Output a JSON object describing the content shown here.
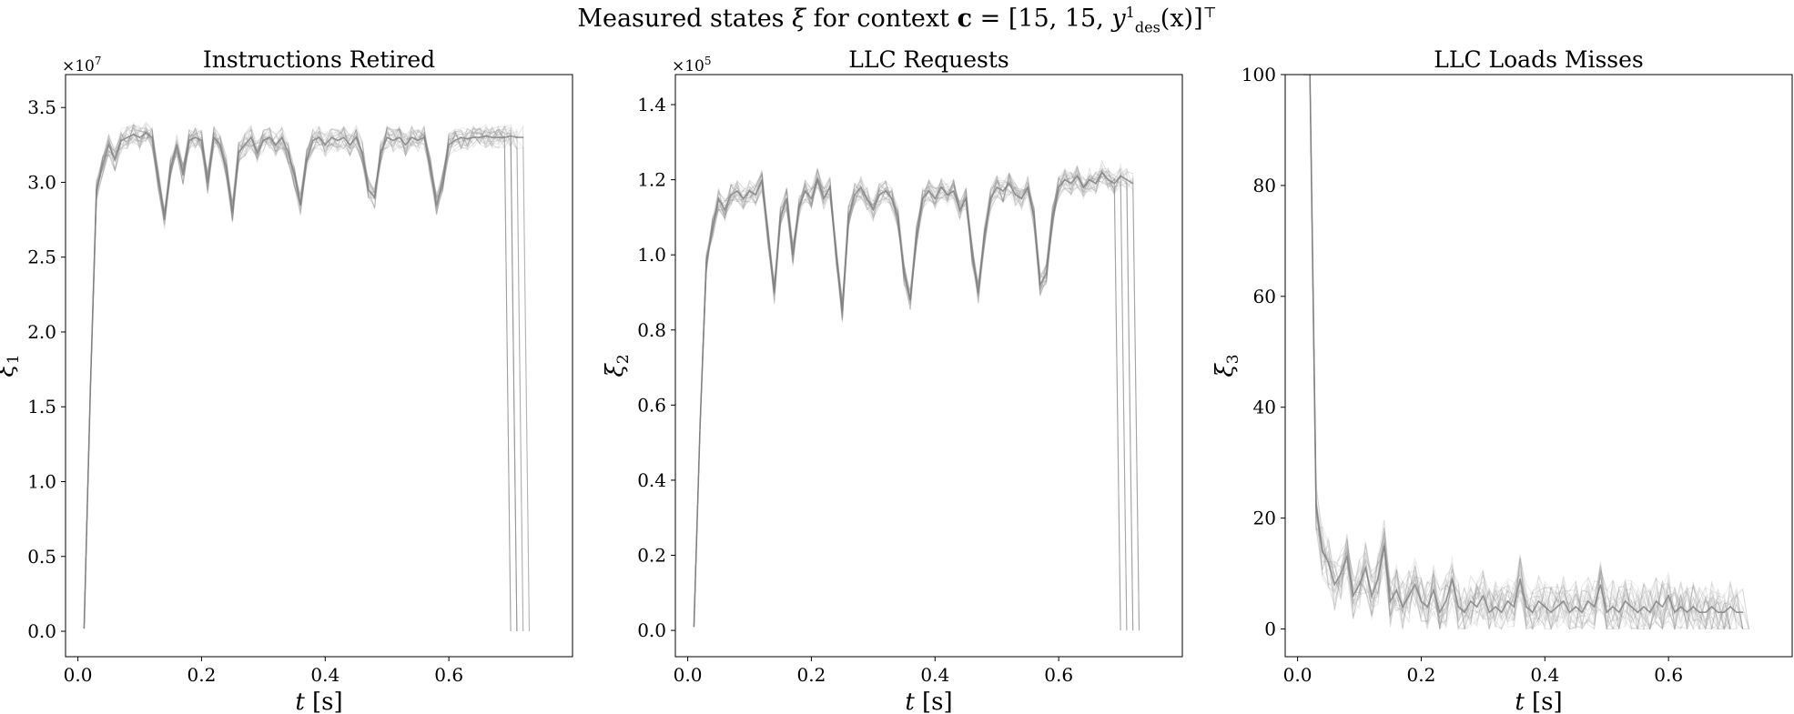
{
  "figure": {
    "suptitle_prefix": "Measured states ",
    "suptitle_xi": "ξ",
    "suptitle_mid": " for context ",
    "suptitle_c": "c",
    "suptitle_eq": " = [15, 15, ",
    "suptitle_y": "y",
    "suptitle_sup": "1",
    "suptitle_sub": "des",
    "suptitle_arg": "(x)",
    "suptitle_close": "]",
    "suptitle_T": "⊤",
    "line_color": "#808080"
  },
  "chart_data": [
    {
      "type": "line",
      "title": "Instructions Retired",
      "xlabel": "t [s]",
      "ylabel": "ξ1",
      "ylabel_base": "ξ",
      "ylabel_sub": "1",
      "offset_text": "×10",
      "offset_exp": "7",
      "xlim": [
        -0.02,
        0.8
      ],
      "ylim": [
        -0.17,
        3.72
      ],
      "xticks": [
        0.0,
        0.2,
        0.4,
        0.6
      ],
      "xtick_labels": [
        "0.0",
        "0.2",
        "0.4",
        "0.6"
      ],
      "yticks": [
        0.0,
        0.5,
        1.0,
        1.5,
        2.0,
        2.5,
        3.0,
        3.5
      ],
      "ytick_labels": [
        "0.0",
        "0.5",
        "1.0",
        "1.5",
        "2.0",
        "2.5",
        "3.0",
        "3.5"
      ],
      "grid": false,
      "series": [
        {
          "x": [
            0.01,
            0.02,
            0.03,
            0.04,
            0.05,
            0.06,
            0.07,
            0.08,
            0.09,
            0.1,
            0.11,
            0.12,
            0.13,
            0.14,
            0.15,
            0.16,
            0.17,
            0.18,
            0.19,
            0.2,
            0.21,
            0.22,
            0.23,
            0.24,
            0.25,
            0.26,
            0.27,
            0.28,
            0.29,
            0.3,
            0.31,
            0.32,
            0.33,
            0.34,
            0.35,
            0.36,
            0.37,
            0.38,
            0.39,
            0.4,
            0.41,
            0.42,
            0.43,
            0.44,
            0.45,
            0.46,
            0.47,
            0.48,
            0.49,
            0.5,
            0.51,
            0.52,
            0.53,
            0.54,
            0.55,
            0.56,
            0.57,
            0.58,
            0.59,
            0.6,
            0.61,
            0.62,
            0.63,
            0.64,
            0.65,
            0.66,
            0.67,
            0.68,
            0.69,
            0.7,
            0.71,
            0.72
          ],
          "y": [
            0.02,
            1.6,
            2.95,
            3.12,
            3.25,
            3.15,
            3.28,
            3.3,
            3.32,
            3.3,
            3.33,
            3.3,
            3.02,
            2.75,
            3.1,
            3.25,
            3.05,
            3.28,
            3.3,
            3.28,
            3.0,
            3.3,
            3.25,
            3.1,
            2.8,
            3.2,
            3.25,
            3.3,
            3.2,
            3.28,
            3.3,
            3.25,
            3.3,
            3.2,
            3.05,
            2.85,
            3.15,
            3.28,
            3.3,
            3.25,
            3.3,
            3.28,
            3.3,
            3.25,
            3.3,
            3.2,
            2.95,
            2.9,
            3.2,
            3.3,
            3.28,
            3.3,
            3.25,
            3.3,
            3.28,
            3.3,
            3.1,
            2.85,
            3.0,
            3.25,
            3.28,
            3.3,
            3.29,
            3.3,
            3.3,
            3.31,
            3.3,
            3.3,
            3.3,
            3.31,
            3.3,
            3.3
          ]
        }
      ]
    },
    {
      "type": "line",
      "title": "LLC Requests",
      "xlabel": "t [s]",
      "ylabel": "ξ2",
      "ylabel_base": "ξ",
      "ylabel_sub": "2",
      "offset_text": "×10",
      "offset_exp": "5",
      "xlim": [
        -0.02,
        0.8
      ],
      "ylim": [
        -0.07,
        1.48
      ],
      "xticks": [
        0.0,
        0.2,
        0.4,
        0.6
      ],
      "xtick_labels": [
        "0.0",
        "0.2",
        "0.4",
        "0.6"
      ],
      "yticks": [
        0.0,
        0.2,
        0.4,
        0.6,
        0.8,
        1.0,
        1.2,
        1.4
      ],
      "ytick_labels": [
        "0.0",
        "0.2",
        "0.4",
        "0.6",
        "0.8",
        "1.0",
        "1.2",
        "1.4"
      ],
      "grid": false,
      "series": [
        {
          "x": [
            0.01,
            0.02,
            0.03,
            0.04,
            0.05,
            0.06,
            0.07,
            0.08,
            0.09,
            0.1,
            0.11,
            0.12,
            0.13,
            0.14,
            0.15,
            0.16,
            0.17,
            0.18,
            0.19,
            0.2,
            0.21,
            0.22,
            0.23,
            0.24,
            0.25,
            0.26,
            0.27,
            0.28,
            0.29,
            0.3,
            0.31,
            0.32,
            0.33,
            0.34,
            0.35,
            0.36,
            0.37,
            0.38,
            0.39,
            0.4,
            0.41,
            0.42,
            0.43,
            0.44,
            0.45,
            0.46,
            0.47,
            0.48,
            0.49,
            0.5,
            0.51,
            0.52,
            0.53,
            0.54,
            0.55,
            0.56,
            0.57,
            0.58,
            0.59,
            0.6,
            0.61,
            0.62,
            0.63,
            0.64,
            0.65,
            0.66,
            0.67,
            0.68,
            0.69,
            0.7,
            0.71,
            0.72
          ],
          "y": [
            0.01,
            0.55,
            0.98,
            1.07,
            1.15,
            1.12,
            1.16,
            1.17,
            1.15,
            1.17,
            1.16,
            1.2,
            1.05,
            0.9,
            1.1,
            1.15,
            1.0,
            1.13,
            1.17,
            1.15,
            1.2,
            1.15,
            1.18,
            1.0,
            0.85,
            1.1,
            1.16,
            1.18,
            1.15,
            1.12,
            1.16,
            1.17,
            1.15,
            1.1,
            0.95,
            0.88,
            1.05,
            1.15,
            1.17,
            1.15,
            1.18,
            1.16,
            1.17,
            1.12,
            1.15,
            1.0,
            0.9,
            1.05,
            1.15,
            1.18,
            1.17,
            1.19,
            1.16,
            1.15,
            1.18,
            1.1,
            0.92,
            0.95,
            1.1,
            1.18,
            1.2,
            1.19,
            1.21,
            1.18,
            1.2,
            1.19,
            1.22,
            1.2,
            1.19,
            1.21,
            1.2,
            1.19
          ]
        }
      ]
    },
    {
      "type": "line",
      "title": "LLC Loads Misses",
      "xlabel": "t [s]",
      "ylabel": "ξ3",
      "ylabel_base": "ξ",
      "ylabel_sub": "3",
      "offset_text": "",
      "offset_exp": "",
      "xlim": [
        -0.02,
        0.8
      ],
      "ylim": [
        -5,
        100
      ],
      "xticks": [
        0.0,
        0.2,
        0.4,
        0.6
      ],
      "xtick_labels": [
        "0.0",
        "0.2",
        "0.4",
        "0.6"
      ],
      "yticks": [
        0,
        20,
        40,
        60,
        80,
        100
      ],
      "ytick_labels": [
        "0",
        "20",
        "40",
        "60",
        "80",
        "100"
      ],
      "grid": false,
      "series": [
        {
          "x": [
            0.01,
            0.02,
            0.03,
            0.04,
            0.05,
            0.06,
            0.07,
            0.08,
            0.09,
            0.1,
            0.11,
            0.12,
            0.13,
            0.14,
            0.15,
            0.16,
            0.17,
            0.18,
            0.19,
            0.2,
            0.21,
            0.22,
            0.23,
            0.24,
            0.25,
            0.26,
            0.27,
            0.28,
            0.29,
            0.3,
            0.31,
            0.32,
            0.33,
            0.34,
            0.35,
            0.36,
            0.37,
            0.38,
            0.39,
            0.4,
            0.41,
            0.42,
            0.43,
            0.44,
            0.45,
            0.46,
            0.47,
            0.48,
            0.49,
            0.5,
            0.51,
            0.52,
            0.53,
            0.54,
            0.55,
            0.56,
            0.57,
            0.58,
            0.59,
            0.6,
            0.61,
            0.62,
            0.63,
            0.64,
            0.65,
            0.66,
            0.67,
            0.68,
            0.69,
            0.7,
            0.71,
            0.72
          ],
          "y": [
            100,
            100,
            22,
            14,
            12,
            8,
            10,
            13,
            6,
            8,
            11,
            6,
            9,
            15,
            5,
            7,
            4,
            6,
            8,
            5,
            4,
            7,
            3,
            5,
            9,
            4,
            3,
            5,
            4,
            6,
            3,
            4,
            3,
            5,
            4,
            9,
            4,
            3,
            5,
            4,
            3,
            4,
            5,
            3,
            4,
            3,
            5,
            4,
            8,
            3,
            4,
            3,
            5,
            4,
            3,
            4,
            3,
            5,
            4,
            6,
            3,
            4,
            3,
            4,
            3,
            3,
            4,
            3,
            3,
            4,
            3,
            3
          ]
        }
      ]
    }
  ]
}
